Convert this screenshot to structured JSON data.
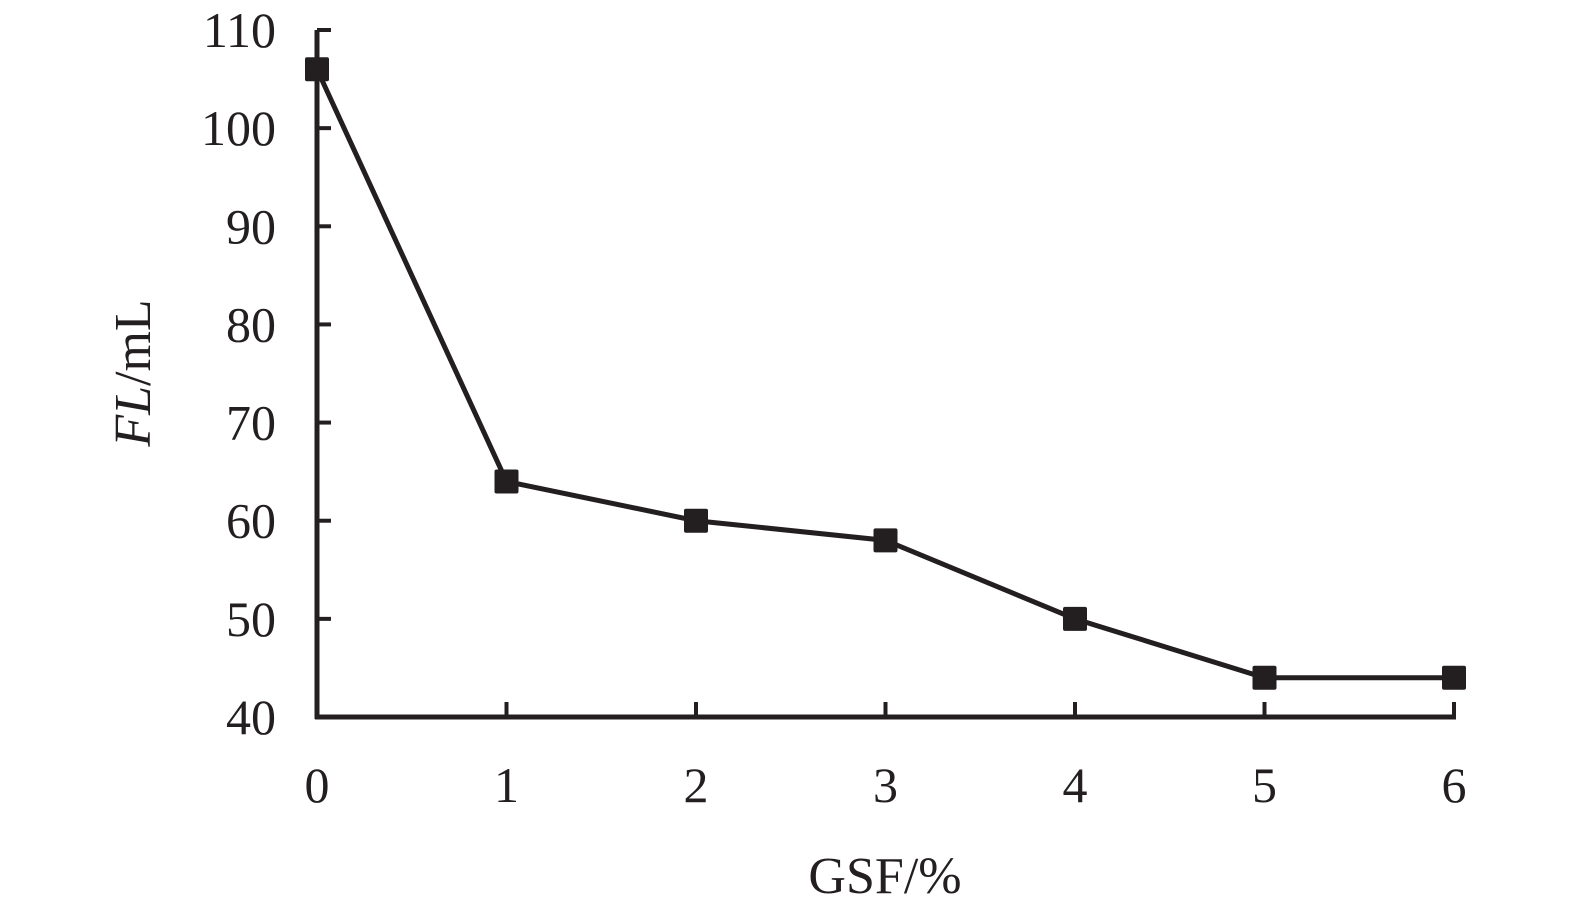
{
  "chart_data": {
    "type": "line",
    "title": "",
    "xlabel": "GSF/%",
    "ylabel": {
      "italic": "FL",
      "rest": "/mL"
    },
    "xlim": [
      0,
      6
    ],
    "ylim": [
      40,
      110
    ],
    "x_ticks": [
      "0",
      "1",
      "2",
      "3",
      "4",
      "5",
      "6"
    ],
    "y_ticks": [
      "40",
      "50",
      "60",
      "70",
      "80",
      "90",
      "100",
      "110"
    ],
    "grid": false,
    "legend": "none",
    "marker": "square",
    "color": "#231f20",
    "series": [
      {
        "x": [
          0,
          1,
          2,
          3,
          4,
          5,
          6
        ],
        "values": [
          106,
          64,
          60,
          58,
          50,
          44,
          44
        ]
      }
    ]
  }
}
